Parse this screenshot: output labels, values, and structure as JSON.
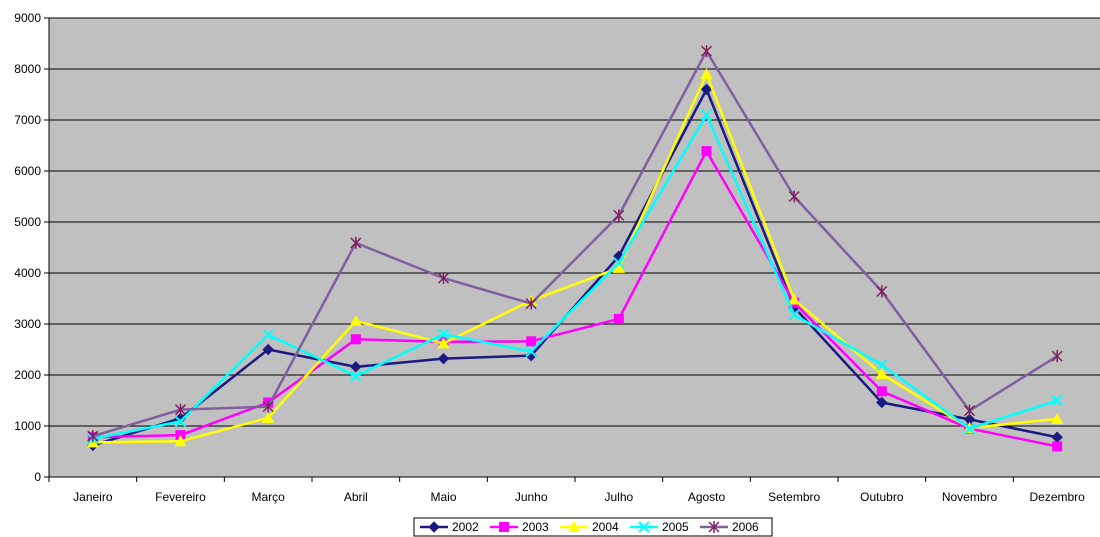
{
  "chart_data": {
    "type": "line",
    "categories": [
      "Janeiro",
      "Fevereiro",
      "Março",
      "Abril",
      "Maio",
      "Junho",
      "Julho",
      "Agosto",
      "Setembro",
      "Outubro",
      "Novembro",
      "Dezembro"
    ],
    "series": [
      {
        "name": "2002",
        "color": "#1A1A80",
        "marker": "diamond",
        "values": [
          620,
          1150,
          2500,
          2160,
          2320,
          2380,
          4330,
          7600,
          3330,
          1460,
          1130,
          780
        ]
      },
      {
        "name": "2003",
        "color": "#FF00FF",
        "marker": "square",
        "values": [
          780,
          820,
          1460,
          2700,
          2650,
          2660,
          3100,
          6390,
          3420,
          1680,
          950,
          600
        ]
      },
      {
        "name": "2004",
        "color": "#FFFF00",
        "marker": "triangle",
        "values": [
          680,
          700,
          1160,
          3060,
          2620,
          3460,
          4100,
          7900,
          3480,
          2020,
          960,
          1140
        ]
      },
      {
        "name": "2005",
        "color": "#00FFFF",
        "marker": "x",
        "values": [
          750,
          1090,
          2790,
          1980,
          2800,
          2460,
          4200,
          7100,
          3180,
          2200,
          950,
          1500
        ]
      },
      {
        "name": "2006",
        "color": "#7F5FA0",
        "marker": "asterisk",
        "values": [
          800,
          1320,
          1380,
          4590,
          3900,
          3400,
          5130,
          8350,
          5500,
          3640,
          1300,
          2370
        ]
      }
    ],
    "yticks": [
      "0",
      "1000",
      "2000",
      "3000",
      "4000",
      "5000",
      "6000",
      "7000",
      "8000",
      "9000"
    ],
    "ylim": [
      0,
      9000
    ],
    "grid": "major horizontal",
    "plot_background": "#C0C0C0",
    "legend_position": "bottom-center",
    "title": "",
    "xlabel": "",
    "ylabel": ""
  }
}
